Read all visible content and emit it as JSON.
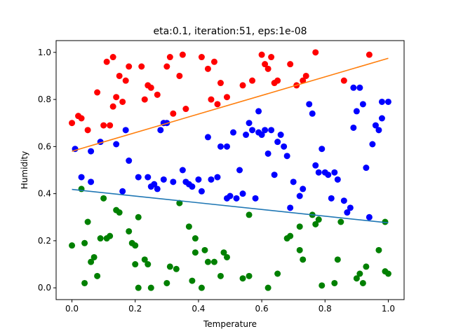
{
  "chart_data": {
    "type": "scatter",
    "title": "eta:0.1, iteration:51, eps:1e-08",
    "xlabel": "Temperature",
    "ylabel": "Humidity",
    "xlim": [
      -0.05,
      1.05
    ],
    "ylim": [
      -0.05,
      1.05
    ],
    "xticks": [
      0.0,
      0.2,
      0.4,
      0.6,
      0.8,
      1.0
    ],
    "yticks": [
      0.0,
      0.2,
      0.4,
      0.6,
      0.8,
      1.0
    ],
    "tick_format": "0.0",
    "grid": false,
    "legend": "none",
    "series": [
      {
        "color": "#ff0000",
        "points": [
          [
            0.0,
            0.7
          ],
          [
            0.02,
            0.73
          ],
          [
            0.03,
            0.72
          ],
          [
            0.05,
            0.67
          ],
          [
            0.08,
            0.83
          ],
          [
            0.1,
            0.69
          ],
          [
            0.11,
            0.96
          ],
          [
            0.12,
            0.69
          ],
          [
            0.13,
            0.77
          ],
          [
            0.13,
            0.98
          ],
          [
            0.14,
            0.81
          ],
          [
            0.15,
            0.9
          ],
          [
            0.16,
            0.79
          ],
          [
            0.17,
            0.88
          ],
          [
            0.18,
            0.94
          ],
          [
            0.22,
            0.94
          ],
          [
            0.23,
            0.8
          ],
          [
            0.24,
            0.86
          ],
          [
            0.25,
            0.85
          ],
          [
            0.27,
            0.82
          ],
          [
            0.29,
            0.7
          ],
          [
            0.3,
            0.94
          ],
          [
            0.31,
            0.98
          ],
          [
            0.32,
            0.74
          ],
          [
            0.34,
            0.9
          ],
          [
            0.35,
            0.99
          ],
          [
            0.36,
            0.76
          ],
          [
            0.41,
            0.98
          ],
          [
            0.43,
            0.93
          ],
          [
            0.44,
            0.8
          ],
          [
            0.45,
            0.96
          ],
          [
            0.46,
            0.78
          ],
          [
            0.47,
            0.87
          ],
          [
            0.49,
            0.81
          ],
          [
            0.54,
            0.86
          ],
          [
            0.57,
            0.88
          ],
          [
            0.6,
            0.99
          ],
          [
            0.61,
            0.95
          ],
          [
            0.62,
            0.93
          ],
          [
            0.63,
            0.98
          ],
          [
            0.64,
            0.87
          ],
          [
            0.65,
            0.88
          ],
          [
            0.69,
            0.95
          ],
          [
            0.71,
            0.86
          ],
          [
            0.73,
            0.88
          ],
          [
            0.74,
            0.9
          ],
          [
            0.77,
            1.0
          ],
          [
            0.86,
            0.88
          ],
          [
            0.94,
            0.99
          ]
        ]
      },
      {
        "color": "#0000ff",
        "points": [
          [
            0.01,
            0.59
          ],
          [
            0.03,
            0.47
          ],
          [
            0.06,
            0.58
          ],
          [
            0.06,
            0.45
          ],
          [
            0.09,
            0.62
          ],
          [
            0.14,
            0.61
          ],
          [
            0.16,
            0.41
          ],
          [
            0.17,
            0.67
          ],
          [
            0.18,
            0.54
          ],
          [
            0.21,
            0.47
          ],
          [
            0.24,
            0.47
          ],
          [
            0.25,
            0.43
          ],
          [
            0.26,
            0.44
          ],
          [
            0.27,
            0.42
          ],
          [
            0.28,
            0.67
          ],
          [
            0.29,
            0.7
          ],
          [
            0.29,
            0.46
          ],
          [
            0.3,
            0.7
          ],
          [
            0.32,
            0.45
          ],
          [
            0.35,
            0.5
          ],
          [
            0.36,
            0.45
          ],
          [
            0.37,
            0.44
          ],
          [
            0.38,
            0.43
          ],
          [
            0.4,
            0.46
          ],
          [
            0.41,
            0.41
          ],
          [
            0.43,
            0.64
          ],
          [
            0.44,
            0.46
          ],
          [
            0.46,
            0.47
          ],
          [
            0.47,
            0.6
          ],
          [
            0.49,
            0.38
          ],
          [
            0.49,
            0.6
          ],
          [
            0.5,
            0.39
          ],
          [
            0.51,
            0.66
          ],
          [
            0.52,
            0.38
          ],
          [
            0.53,
            0.5
          ],
          [
            0.54,
            0.4
          ],
          [
            0.55,
            0.65
          ],
          [
            0.56,
            0.7
          ],
          [
            0.57,
            0.67
          ],
          [
            0.58,
            0.38
          ],
          [
            0.59,
            0.66
          ],
          [
            0.59,
            0.75
          ],
          [
            0.6,
            0.65
          ],
          [
            0.61,
            0.67
          ],
          [
            0.62,
            0.57
          ],
          [
            0.63,
            0.67
          ],
          [
            0.64,
            0.48
          ],
          [
            0.65,
            0.62
          ],
          [
            0.66,
            0.65
          ],
          [
            0.67,
            0.6
          ],
          [
            0.68,
            0.56
          ],
          [
            0.69,
            0.34
          ],
          [
            0.7,
            0.45
          ],
          [
            0.72,
            0.39
          ],
          [
            0.73,
            0.42
          ],
          [
            0.75,
            0.78
          ],
          [
            0.76,
            0.74
          ],
          [
            0.77,
            0.52
          ],
          [
            0.78,
            0.49
          ],
          [
            0.79,
            0.59
          ],
          [
            0.8,
            0.49
          ],
          [
            0.81,
            0.48
          ],
          [
            0.82,
            0.38
          ],
          [
            0.83,
            0.49
          ],
          [
            0.84,
            0.46
          ],
          [
            0.86,
            0.37
          ],
          [
            0.87,
            0.32
          ],
          [
            0.88,
            0.34
          ],
          [
            0.89,
            0.68
          ],
          [
            0.89,
            0.85
          ],
          [
            0.9,
            0.75
          ],
          [
            0.91,
            0.85
          ],
          [
            0.92,
            0.78
          ],
          [
            0.93,
            0.51
          ],
          [
            0.94,
            0.3
          ],
          [
            0.95,
            0.61
          ],
          [
            0.96,
            0.69
          ],
          [
            0.97,
            0.67
          ],
          [
            0.98,
            0.79
          ],
          [
            0.98,
            0.72
          ],
          [
            1.0,
            0.79
          ]
        ]
      },
      {
        "color": "#008000",
        "points": [
          [
            0.0,
            0.18
          ],
          [
            0.03,
            0.42
          ],
          [
            0.04,
            0.19
          ],
          [
            0.04,
            0.02
          ],
          [
            0.05,
            0.28
          ],
          [
            0.06,
            0.11
          ],
          [
            0.07,
            0.13
          ],
          [
            0.08,
            0.05
          ],
          [
            0.09,
            0.21
          ],
          [
            0.1,
            0.38
          ],
          [
            0.11,
            0.21
          ],
          [
            0.12,
            0.22
          ],
          [
            0.14,
            0.33
          ],
          [
            0.15,
            0.32
          ],
          [
            0.18,
            0.24
          ],
          [
            0.19,
            0.19
          ],
          [
            0.2,
            0.1
          ],
          [
            0.2,
            0.18
          ],
          [
            0.21,
            0.3
          ],
          [
            0.21,
            0.0
          ],
          [
            0.23,
            0.12
          ],
          [
            0.24,
            0.1
          ],
          [
            0.25,
            0.0
          ],
          [
            0.3,
            0.02
          ],
          [
            0.31,
            0.09
          ],
          [
            0.33,
            0.08
          ],
          [
            0.34,
            0.36
          ],
          [
            0.37,
            0.26
          ],
          [
            0.38,
            0.03
          ],
          [
            0.39,
            0.21
          ],
          [
            0.39,
            0.15
          ],
          [
            0.41,
            0.0
          ],
          [
            0.42,
            0.16
          ],
          [
            0.43,
            0.11
          ],
          [
            0.45,
            0.11
          ],
          [
            0.47,
            0.05
          ],
          [
            0.48,
            0.15
          ],
          [
            0.49,
            0.13
          ],
          [
            0.54,
            0.04
          ],
          [
            0.56,
            0.31
          ],
          [
            0.56,
            0.05
          ],
          [
            0.62,
            0.0
          ],
          [
            0.65,
            0.06
          ],
          [
            0.68,
            0.21
          ],
          [
            0.69,
            0.22
          ],
          [
            0.72,
            0.16
          ],
          [
            0.73,
            0.12
          ],
          [
            0.72,
            0.26
          ],
          [
            0.76,
            0.31
          ],
          [
            0.77,
            0.27
          ],
          [
            0.78,
            0.29
          ],
          [
            0.79,
            0.01
          ],
          [
            0.83,
            0.02
          ],
          [
            0.84,
            0.12
          ],
          [
            0.85,
            0.28
          ],
          [
            0.9,
            0.04
          ],
          [
            0.91,
            0.06
          ],
          [
            0.92,
            0.02
          ],
          [
            0.93,
            0.09
          ],
          [
            0.97,
            0.16
          ],
          [
            0.99,
            0.07
          ],
          [
            0.99,
            0.28
          ],
          [
            1.0,
            0.06
          ]
        ]
      }
    ],
    "lines": [
      {
        "color": "#ff7f0e",
        "x": [
          0.0,
          1.0
        ],
        "y": [
          0.58,
          0.975
        ]
      },
      {
        "color": "#1f77b4",
        "x": [
          0.0,
          1.0
        ],
        "y": [
          0.418,
          0.276
        ]
      }
    ]
  }
}
